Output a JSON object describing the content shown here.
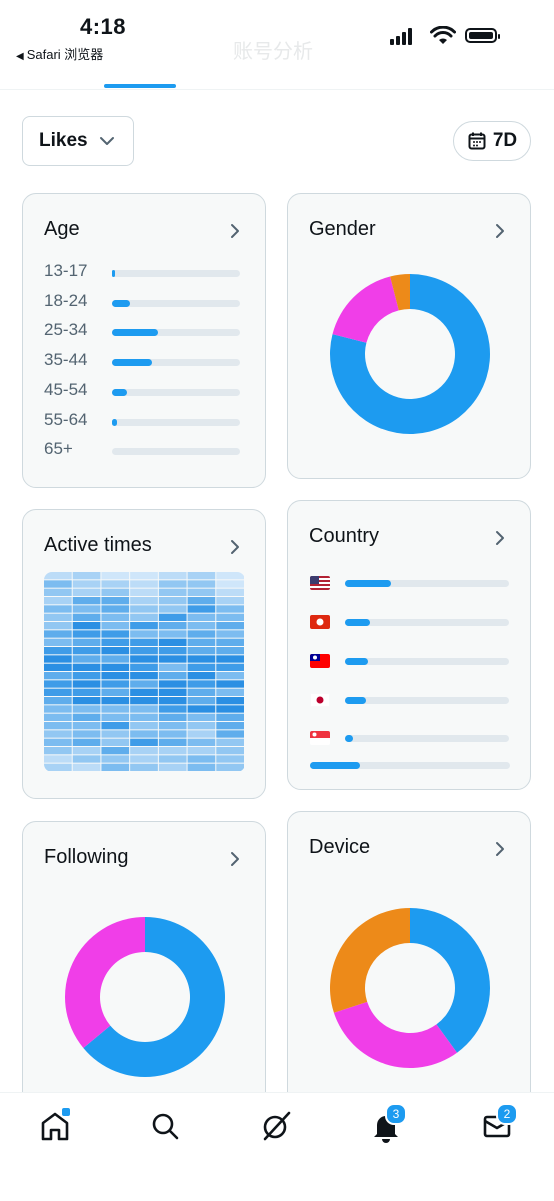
{
  "status_bar": {
    "time": "4:18",
    "back_app": "Safari 浏览器",
    "faded_title": "账号分析"
  },
  "controls": {
    "metric_label": "Likes",
    "range_label": "7D"
  },
  "colors": {
    "accent": "#1d9bf0",
    "pink": "#f03ee8",
    "orange": "#ed8a19",
    "track": "#e1e8ed"
  },
  "cards": {
    "age": {
      "title": "Age",
      "rows": [
        {
          "label": "13-17",
          "value": 0.02
        },
        {
          "label": "18-24",
          "value": 0.14
        },
        {
          "label": "25-34",
          "value": 0.36
        },
        {
          "label": "35-44",
          "value": 0.31
        },
        {
          "label": "45-54",
          "value": 0.12
        },
        {
          "label": "55-64",
          "value": 0.04
        },
        {
          "label": "65+",
          "value": 0.0
        }
      ]
    },
    "gender": {
      "title": "Gender",
      "segments": [
        {
          "color": "#1d9bf0",
          "value": 0.79
        },
        {
          "color": "#f03ee8",
          "value": 0.17
        },
        {
          "color": "#ed8a19",
          "value": 0.04
        }
      ]
    },
    "active_times": {
      "title": "Active times"
    },
    "country": {
      "title": "Country",
      "rows": [
        {
          "flag": "us-flag-icon",
          "value": 0.28
        },
        {
          "flag": "hk-flag-icon",
          "value": 0.15
        },
        {
          "flag": "tw-flag-icon",
          "value": 0.14
        },
        {
          "flag": "jp-flag-icon",
          "value": 0.13
        },
        {
          "flag": "sg-flag-icon",
          "value": 0.05
        }
      ],
      "other_value": 0.25
    },
    "following": {
      "title": "Following",
      "segments": [
        {
          "color": "#1d9bf0",
          "value": 0.64
        },
        {
          "color": "#f03ee8",
          "value": 0.36
        }
      ]
    },
    "device": {
      "title": "Device",
      "segments": [
        {
          "color": "#1d9bf0",
          "value": 0.4
        },
        {
          "color": "#f03ee8",
          "value": 0.3
        },
        {
          "color": "#ed8a19",
          "value": 0.3
        }
      ]
    }
  },
  "nav": {
    "notifications_count": "3",
    "messages_count": "2"
  }
}
